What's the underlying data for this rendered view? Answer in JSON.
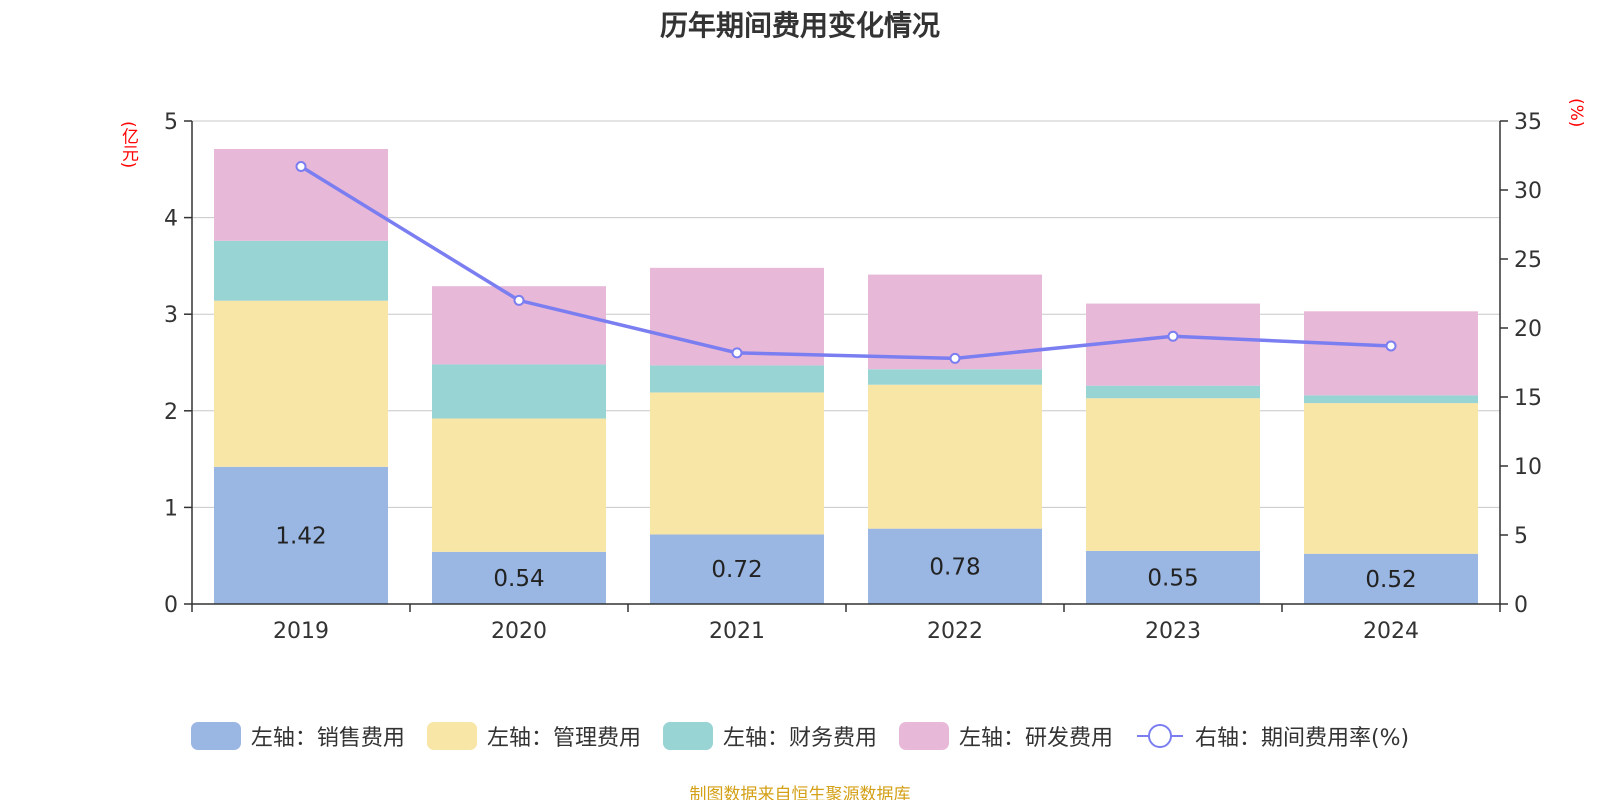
{
  "title": "历年期间费用变化情况",
  "units": {
    "left": "(亿元)",
    "right": "(%)"
  },
  "source": "制图数据来自恒生聚源数据库",
  "chart_data": {
    "type": "bar",
    "stacked": true,
    "categories": [
      "2019",
      "2020",
      "2021",
      "2022",
      "2023",
      "2024"
    ],
    "series": [
      {
        "name": "左轴：销售费用",
        "axis": "left",
        "color": "#9ab6e2",
        "values": [
          1.42,
          0.54,
          0.72,
          0.78,
          0.55,
          0.52
        ],
        "show_labels": true
      },
      {
        "name": "左轴：管理费用",
        "axis": "left",
        "color": "#f8e6a6",
        "values": [
          1.72,
          1.38,
          1.47,
          1.49,
          1.58,
          1.56
        ],
        "show_labels": false
      },
      {
        "name": "左轴：财务费用",
        "axis": "left",
        "color": "#98d4d4",
        "values": [
          0.62,
          0.56,
          0.28,
          0.16,
          0.13,
          0.08
        ],
        "show_labels": false
      },
      {
        "name": "左轴：研发费用",
        "axis": "left",
        "color": "#e8b8d8",
        "values": [
          0.95,
          0.81,
          1.01,
          0.98,
          0.85,
          0.87
        ],
        "show_labels": false
      }
    ],
    "line_series": [
      {
        "name": "右轴：期间费用率(%)",
        "axis": "right",
        "type": "line",
        "color": "#7b7ef0",
        "values": [
          31.7,
          22.0,
          18.2,
          17.8,
          19.4,
          18.7
        ]
      }
    ],
    "y_left": {
      "min": 0,
      "max": 5,
      "ticks": [
        "0",
        "1",
        "2",
        "3",
        "4",
        "5"
      ]
    },
    "y_right": {
      "min": 0,
      "max": 35,
      "ticks": [
        "0",
        "5",
        "10",
        "15",
        "20",
        "25",
        "30",
        "35"
      ]
    },
    "grid": true,
    "legend_position": "bottom"
  }
}
